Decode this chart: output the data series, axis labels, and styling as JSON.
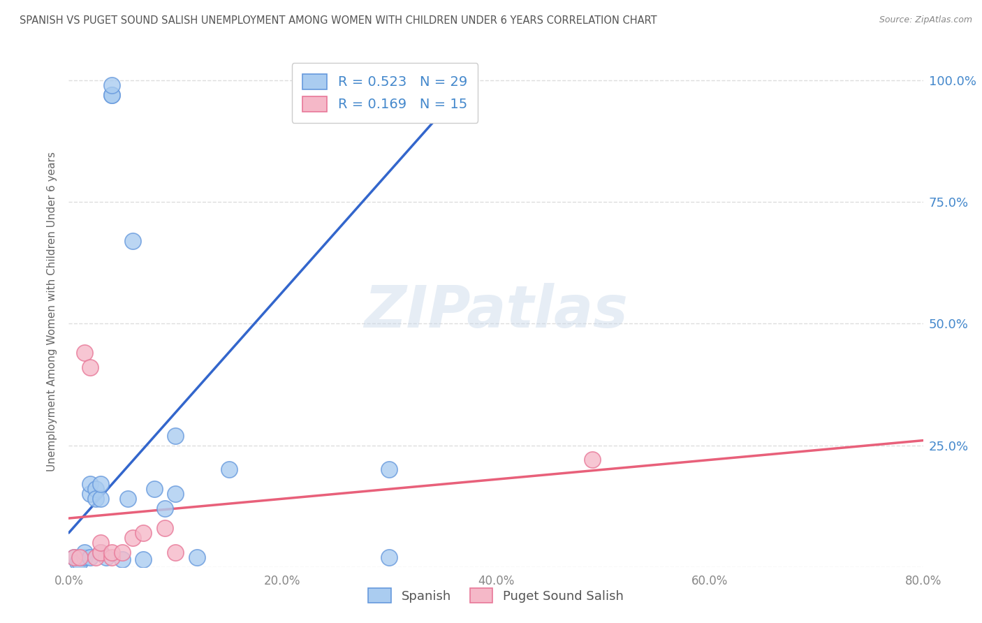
{
  "title": "SPANISH VS PUGET SOUND SALISH UNEMPLOYMENT AMONG WOMEN WITH CHILDREN UNDER 6 YEARS CORRELATION CHART",
  "source": "Source: ZipAtlas.com",
  "ylabel": "Unemployment Among Women with Children Under 6 years",
  "watermark": "ZIPatlas",
  "xlim": [
    0.0,
    0.8
  ],
  "ylim": [
    0.0,
    1.05
  ],
  "ytick_positions": [
    0.0,
    0.25,
    0.5,
    0.75,
    1.0
  ],
  "ytick_labels": [
    "",
    "25.0%",
    "50.0%",
    "75.0%",
    "100.0%"
  ],
  "xtick_positions": [
    0.0,
    0.2,
    0.4,
    0.6,
    0.8
  ],
  "xtick_labels": [
    "0.0%",
    "20.0%",
    "40.0%",
    "60.0%",
    "80.0%"
  ],
  "legend_r_blue": "0.523",
  "legend_n_blue": "29",
  "legend_r_pink": "0.169",
  "legend_n_pink": "15",
  "blue_fill_color": "#aaccf0",
  "blue_edge_color": "#6699dd",
  "pink_fill_color": "#f5b8c8",
  "pink_edge_color": "#e87898",
  "blue_line_color": "#3366cc",
  "pink_line_color": "#e8607a",
  "title_color": "#555555",
  "source_color": "#888888",
  "axis_label_color": "#666666",
  "tick_label_color_right": "#4488cc",
  "tick_label_color_bottom": "#888888",
  "blue_scatter_x": [
    0.005,
    0.008,
    0.01,
    0.015,
    0.015,
    0.02,
    0.02,
    0.02,
    0.025,
    0.025,
    0.03,
    0.03,
    0.03,
    0.035,
    0.04,
    0.04,
    0.04,
    0.05,
    0.055,
    0.06,
    0.07,
    0.08,
    0.09,
    0.1,
    0.1,
    0.12,
    0.15,
    0.3,
    0.3
  ],
  "blue_scatter_y": [
    0.02,
    0.01,
    0.01,
    0.02,
    0.03,
    0.02,
    0.15,
    0.17,
    0.16,
    0.14,
    0.03,
    0.14,
    0.17,
    0.02,
    0.97,
    0.97,
    0.99,
    0.015,
    0.14,
    0.67,
    0.015,
    0.16,
    0.12,
    0.15,
    0.27,
    0.02,
    0.2,
    0.2,
    0.02
  ],
  "pink_scatter_x": [
    0.005,
    0.01,
    0.015,
    0.02,
    0.025,
    0.03,
    0.03,
    0.04,
    0.04,
    0.05,
    0.06,
    0.07,
    0.09,
    0.1,
    0.49
  ],
  "pink_scatter_y": [
    0.02,
    0.02,
    0.44,
    0.41,
    0.02,
    0.03,
    0.05,
    0.02,
    0.03,
    0.03,
    0.06,
    0.07,
    0.08,
    0.03,
    0.22
  ],
  "blue_trendline_x": [
    0.0,
    0.38
  ],
  "blue_trendline_y": [
    0.07,
    1.01
  ],
  "pink_trendline_x": [
    0.0,
    0.8
  ],
  "pink_trendline_y": [
    0.1,
    0.26
  ],
  "grid_color": "#dddddd",
  "bg_color": "#ffffff",
  "figsize": [
    14.06,
    8.92
  ],
  "dpi": 100
}
